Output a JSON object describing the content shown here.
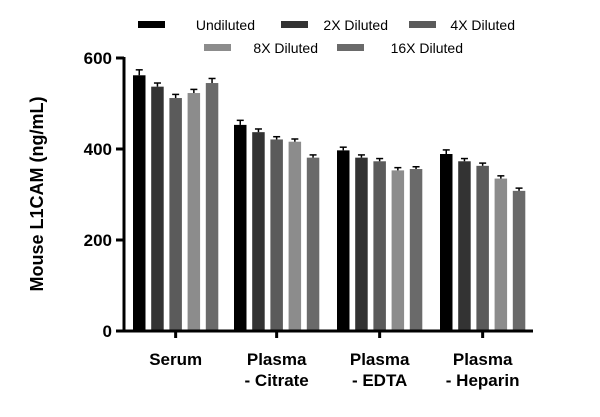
{
  "chart_data": {
    "type": "bar",
    "title": "",
    "xlabel": "",
    "ylabel": "Mouse L1CAM (ng/mL)",
    "ylim": [
      0,
      600
    ],
    "yticks": [
      0,
      200,
      400,
      600
    ],
    "grid": false,
    "legend_position": "top",
    "categories": [
      [
        "Serum"
      ],
      [
        "Plasma",
        "- Citrate"
      ],
      [
        "Plasma",
        "- EDTA"
      ],
      [
        "Plasma",
        "- Heparin"
      ]
    ],
    "series": [
      {
        "name": "Undiluted",
        "color": "#000000",
        "values": [
          562,
          453,
          397,
          389
        ],
        "errors": [
          12,
          10,
          7,
          9
        ]
      },
      {
        "name": "2X Diluted",
        "color": "#333333",
        "values": [
          537,
          437,
          381,
          373
        ],
        "errors": [
          8,
          7,
          6,
          6
        ]
      },
      {
        "name": "4X Diluted",
        "color": "#5b5b5b",
        "values": [
          512,
          421,
          373,
          363
        ],
        "errors": [
          8,
          6,
          6,
          6
        ]
      },
      {
        "name": "8X Diluted",
        "color": "#8c8c8c",
        "values": [
          523,
          416,
          353,
          335
        ],
        "errors": [
          8,
          6,
          6,
          6
        ]
      },
      {
        "name": "16X Diluted",
        "color": "#6a6a6a",
        "values": [
          545,
          381,
          356,
          308
        ],
        "errors": [
          10,
          6,
          5,
          6
        ]
      }
    ]
  }
}
